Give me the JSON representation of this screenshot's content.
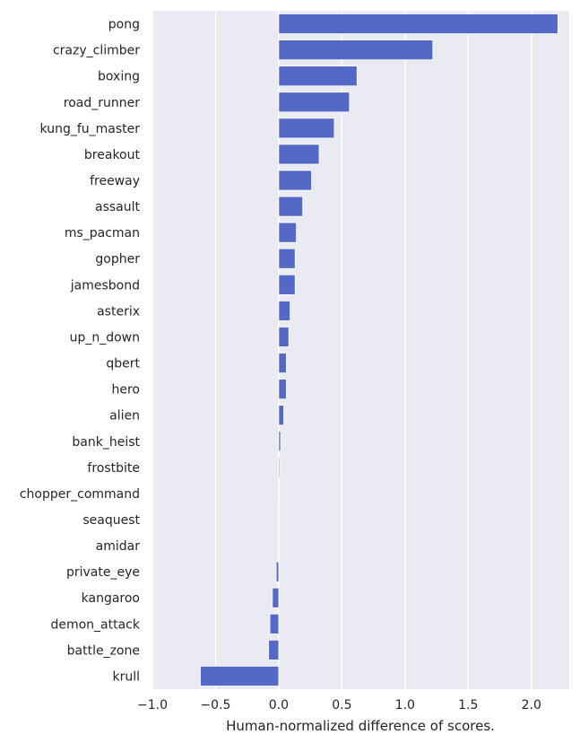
{
  "chart_data": {
    "type": "bar",
    "orientation": "horizontal",
    "title": "",
    "xlabel": "Human-normalized difference of scores.",
    "ylabel": "",
    "xlim": [
      -1.0,
      2.3
    ],
    "xticks": [
      -1.0,
      -0.5,
      0.0,
      0.5,
      1.0,
      1.5,
      2.0
    ],
    "xtick_labels": [
      "−1.0",
      "−0.5",
      "0.0",
      "0.5",
      "1.0",
      "1.5",
      "2.0"
    ],
    "grid": true,
    "bar_color": "#5468c8",
    "background_color": "#eaeaf2",
    "grid_color": "#ffffff",
    "categories": [
      "pong",
      "crazy_climber",
      "boxing",
      "road_runner",
      "kung_fu_master",
      "breakout",
      "freeway",
      "assault",
      "ms_pacman",
      "gopher",
      "jamesbond",
      "asterix",
      "up_n_down",
      "qbert",
      "hero",
      "alien",
      "bank_heist",
      "frostbite",
      "chopper_command",
      "seaquest",
      "amidar",
      "private_eye",
      "kangaroo",
      "demon_attack",
      "battle_zone",
      "krull"
    ],
    "values": [
      2.21,
      1.22,
      0.62,
      0.56,
      0.44,
      0.32,
      0.26,
      0.19,
      0.14,
      0.13,
      0.13,
      0.09,
      0.08,
      0.06,
      0.06,
      0.04,
      0.015,
      0.008,
      0.003,
      0.002,
      0.0,
      -0.02,
      -0.05,
      -0.07,
      -0.08,
      -0.62
    ]
  }
}
